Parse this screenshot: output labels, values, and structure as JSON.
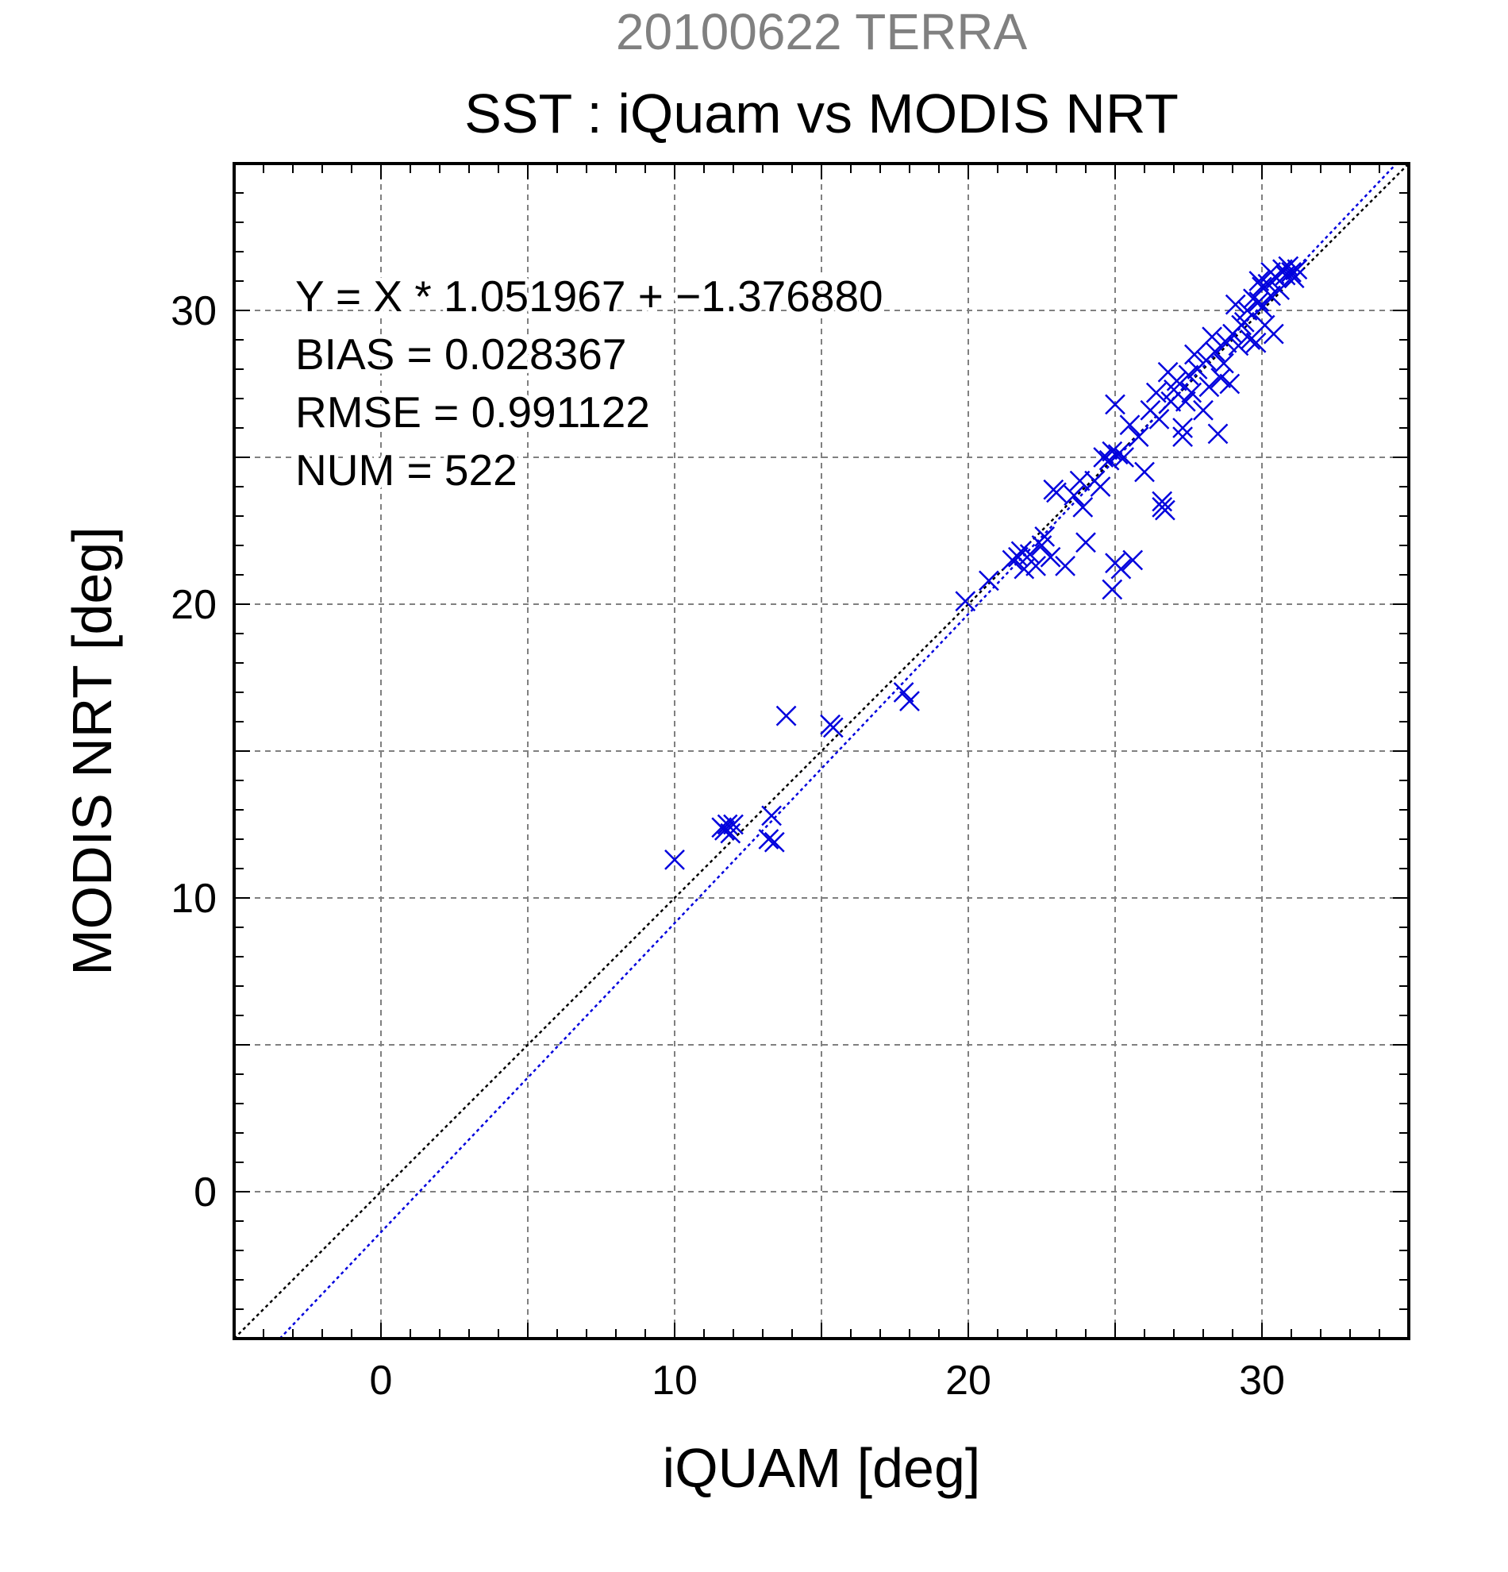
{
  "header": {
    "suptitle": "20100622 TERRA",
    "title": "SST : iQuam vs MODIS NRT"
  },
  "colors": {
    "suptitle": "#808080",
    "text": "#000000",
    "points": "#0000dd",
    "fit_line": "#0000dd",
    "identity_line": "#000000",
    "grid": "#808080",
    "axes": "#000000"
  },
  "chart_data": {
    "type": "scatter",
    "xlabel": "iQUAM [deg]",
    "ylabel": "MODIS NRT [deg]",
    "xlim": [
      -5,
      35
    ],
    "ylim": [
      -5,
      35
    ],
    "xticks": [
      0,
      10,
      20,
      30
    ],
    "yticks": [
      0,
      10,
      20,
      30
    ],
    "grid_step": 5,
    "minor_step": 1,
    "grid": true,
    "marker": "x",
    "annotations": [
      "Y = X * 1.051967 + −1.376880",
      "BIAS = 0.028367",
      "RMSE = 0.991122",
      "NUM = 522"
    ],
    "fit": {
      "slope": 1.051967,
      "intercept": -1.37688
    },
    "identity_line": true,
    "series": [
      {
        "points": [
          [
            10.0,
            11.3
          ],
          [
            11.6,
            12.4
          ],
          [
            11.7,
            12.3
          ],
          [
            11.8,
            12.5
          ],
          [
            12.0,
            12.5
          ],
          [
            11.9,
            12.2
          ],
          [
            13.2,
            12.0
          ],
          [
            13.4,
            11.9
          ],
          [
            13.3,
            12.8
          ],
          [
            13.8,
            16.2
          ],
          [
            15.3,
            15.9
          ],
          [
            15.4,
            15.8
          ],
          [
            17.8,
            17.0
          ],
          [
            18.0,
            16.7
          ],
          [
            19.9,
            20.1
          ],
          [
            20.7,
            20.8
          ],
          [
            21.5,
            21.5
          ],
          [
            21.8,
            21.8
          ],
          [
            21.9,
            21.2
          ],
          [
            22.1,
            21.7
          ],
          [
            22.3,
            21.3
          ],
          [
            22.5,
            22.0
          ],
          [
            22.8,
            21.6
          ],
          [
            22.9,
            23.9
          ],
          [
            23.0,
            23.8
          ],
          [
            23.3,
            21.3
          ],
          [
            23.6,
            23.7
          ],
          [
            23.9,
            23.3
          ],
          [
            24.0,
            22.1
          ],
          [
            24.3,
            24.2
          ],
          [
            24.5,
            24.0
          ],
          [
            24.8,
            24.9
          ],
          [
            24.9,
            25.2
          ],
          [
            25.0,
            26.8
          ],
          [
            25.0,
            21.4
          ],
          [
            24.9,
            20.5
          ],
          [
            25.2,
            21.2
          ],
          [
            25.6,
            21.5
          ],
          [
            25.3,
            25.0
          ],
          [
            25.5,
            26.1
          ],
          [
            25.8,
            25.7
          ],
          [
            26.0,
            24.5
          ],
          [
            26.2,
            26.6
          ],
          [
            26.4,
            27.2
          ],
          [
            26.6,
            23.5
          ],
          [
            26.7,
            23.2
          ],
          [
            26.6,
            23.3
          ],
          [
            26.9,
            26.9
          ],
          [
            27.1,
            27.6
          ],
          [
            27.3,
            26.0
          ],
          [
            27.3,
            25.7
          ],
          [
            27.5,
            27.8
          ],
          [
            27.6,
            27.2
          ],
          [
            27.8,
            28.0
          ],
          [
            28.0,
            26.6
          ],
          [
            28.2,
            27.4
          ],
          [
            28.4,
            28.6
          ],
          [
            28.5,
            25.8
          ],
          [
            28.6,
            27.7
          ],
          [
            28.8,
            28.9
          ],
          [
            28.9,
            27.5
          ],
          [
            29.0,
            29.2
          ],
          [
            29.2,
            28.8
          ],
          [
            29.3,
            29.5
          ],
          [
            29.5,
            30.0
          ],
          [
            29.6,
            29.0
          ],
          [
            29.8,
            28.9
          ],
          [
            29.9,
            30.3
          ],
          [
            30.0,
            30.1
          ],
          [
            30.1,
            29.5
          ],
          [
            30.2,
            30.9
          ],
          [
            30.3,
            31.3
          ],
          [
            30.4,
            29.2
          ],
          [
            30.5,
            31.1
          ],
          [
            30.6,
            30.7
          ],
          [
            30.7,
            31.4
          ],
          [
            30.8,
            31.2
          ],
          [
            30.9,
            31.5
          ],
          [
            31.0,
            31.3
          ],
          [
            31.1,
            31.1
          ],
          [
            31.2,
            31.4
          ],
          [
            27.0,
            27.3
          ],
          [
            27.4,
            26.9
          ],
          [
            28.1,
            28.3
          ],
          [
            28.7,
            28.2
          ],
          [
            29.4,
            29.6
          ],
          [
            29.7,
            30.4
          ],
          [
            30.0,
            30.8
          ],
          [
            26.5,
            26.3
          ],
          [
            25.1,
            25.1
          ],
          [
            24.6,
            25.0
          ],
          [
            23.8,
            24.2
          ],
          [
            22.6,
            22.3
          ],
          [
            21.7,
            21.6
          ],
          [
            28.3,
            29.1
          ],
          [
            27.7,
            28.5
          ],
          [
            29.1,
            30.2
          ],
          [
            26.8,
            27.9
          ],
          [
            30.3,
            30.5
          ],
          [
            29.9,
            31.0
          ]
        ]
      }
    ]
  }
}
